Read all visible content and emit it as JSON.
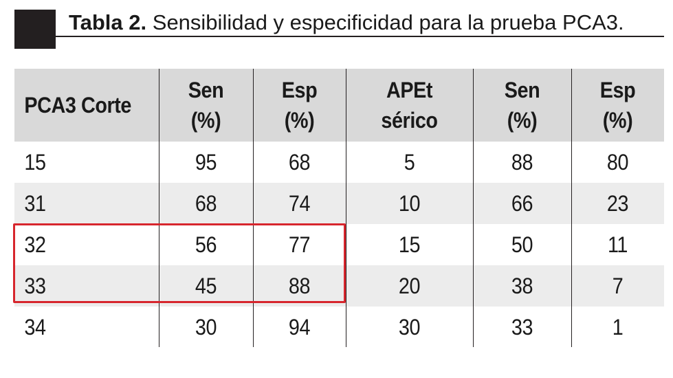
{
  "title": {
    "label": "Tabla 2.",
    "text": "Sensibilidad y especificidad para la prueba PCA3."
  },
  "table": {
    "headers": [
      "PCA3 Corte",
      "Sen\n(%)",
      "Esp\n(%)",
      "APEt\nsérico",
      "Sen\n(%)",
      "Esp\n(%)"
    ],
    "rows": [
      [
        "15",
        "95",
        "68",
        "5",
        "88",
        "80"
      ],
      [
        "31",
        "68",
        "74",
        "10",
        "66",
        "23"
      ],
      [
        "32",
        "56",
        "77",
        "15",
        "50",
        "11"
      ],
      [
        "33",
        "45",
        "88",
        "20",
        "38",
        "7"
      ],
      [
        "34",
        "30",
        "94",
        "30",
        "33",
        "1"
      ]
    ]
  },
  "colors": {
    "header_bg": "#d9d9d9",
    "row_shade": "#ececec",
    "highlight": "#d7262d",
    "block": "#231f20"
  }
}
